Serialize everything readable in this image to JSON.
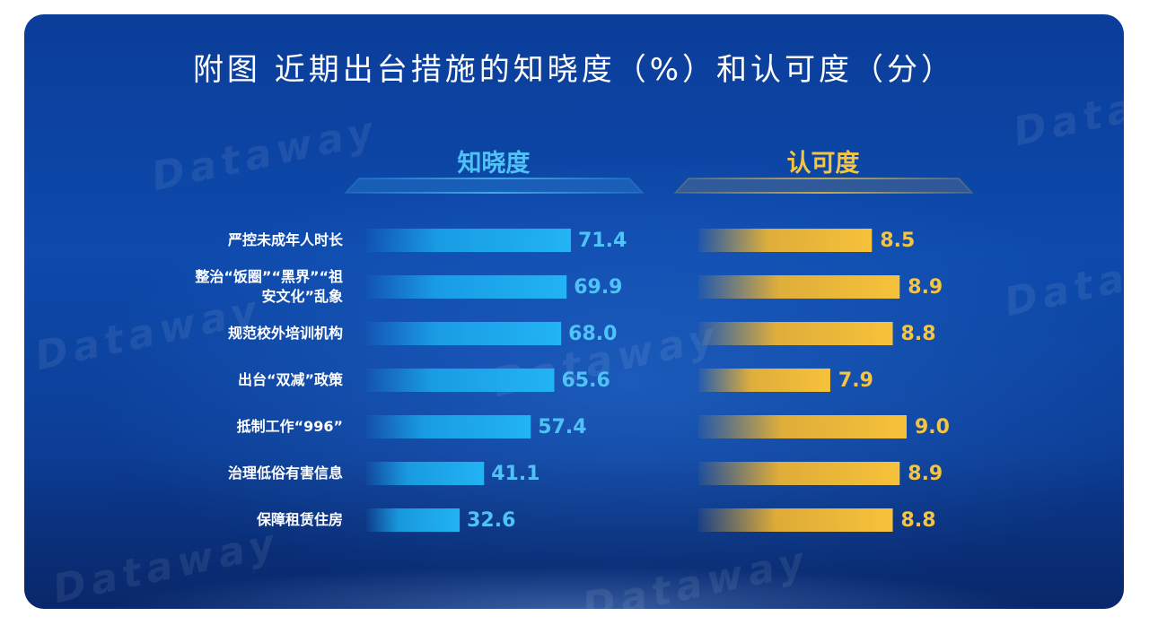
{
  "chart_data": [
    {
      "type": "bar",
      "orientation": "horizontal",
      "title": "附图 近期出台措施的知晓度（%）和认可度（分）",
      "series_label": "知晓度",
      "categories": [
        "严控未成年人时长",
        "整治“饭圈”“黑界”“祖安文化”乱象",
        "规范校外培训机构",
        "出台“双减”政策",
        "抵制工作“996”",
        "治理低俗有害信息",
        "保障租赁住房"
      ],
      "values": [
        71.4,
        69.9,
        68.0,
        65.6,
        57.4,
        41.1,
        32.6
      ],
      "value_labels": [
        "71.4",
        "69.9",
        "68.0",
        "65.6",
        "57.4",
        "41.1",
        "32.6"
      ],
      "color": "#1aa9ec",
      "xlim": [
        0,
        100
      ]
    },
    {
      "type": "bar",
      "orientation": "horizontal",
      "series_label": "认可度",
      "categories": [
        "严控未成年人时长",
        "整治“饭圈”“黑界”“祖安文化”乱象",
        "规范校外培训机构",
        "出台“双减”政策",
        "抵制工作“996”",
        "治理低俗有害信息",
        "保障租赁住房"
      ],
      "values": [
        8.5,
        8.9,
        8.8,
        7.9,
        9.0,
        8.9,
        8.8
      ],
      "value_labels": [
        "8.5",
        "8.9",
        "8.8",
        "7.9",
        "9.0",
        "8.9",
        "8.8"
      ],
      "color": "#f5b82e",
      "xlim": [
        6.0,
        9.0
      ]
    }
  ],
  "category_lines": [
    [
      "严控未成年人时长"
    ],
    [
      "整治“饭圈”“黑界”“祖",
      "安文化”乱象"
    ],
    [
      "规范校外培训机构"
    ],
    [
      "出台“双减”政策"
    ],
    [
      "抵制工作“996”"
    ],
    [
      "治理低俗有害信息"
    ],
    [
      "保障租赁住房"
    ]
  ],
  "watermark": "Dataway"
}
